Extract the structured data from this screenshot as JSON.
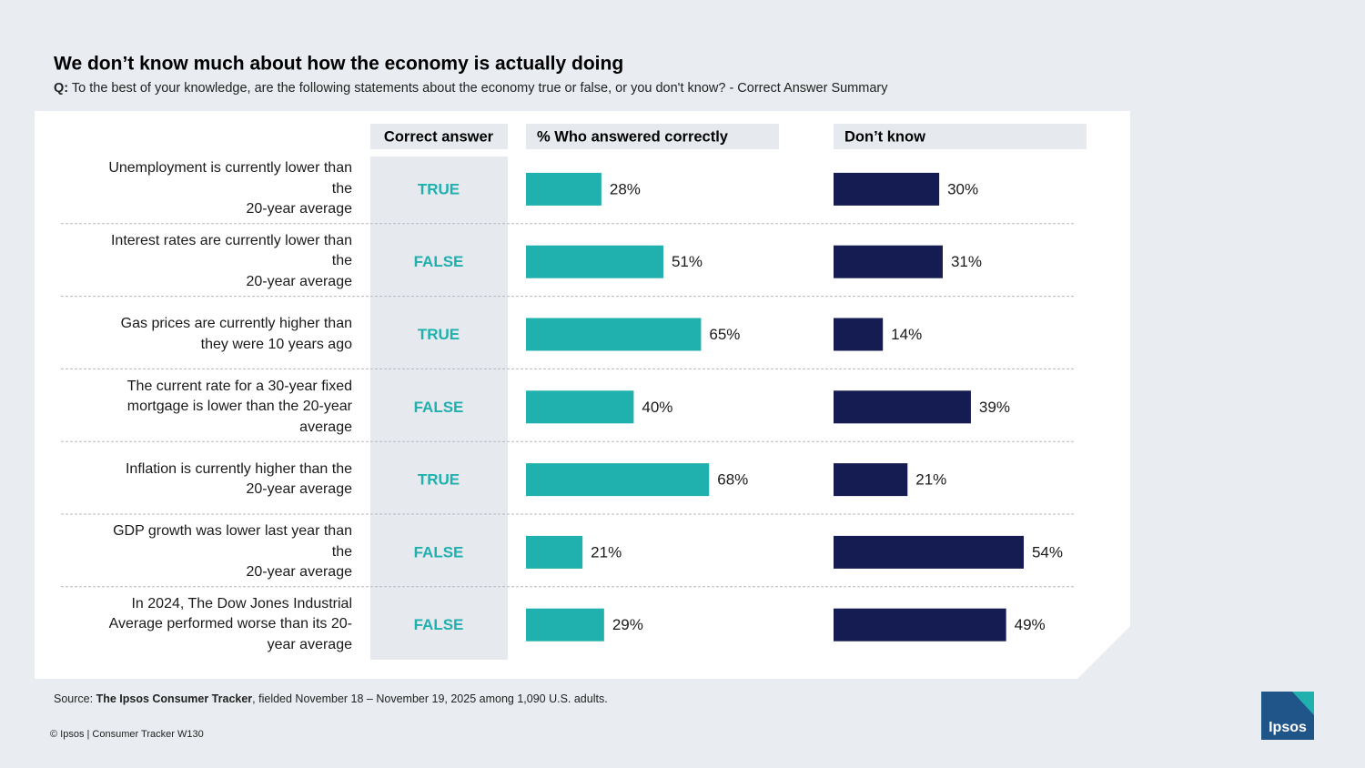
{
  "chart_data": {
    "type": "bar",
    "title": "We don’t know much about how the economy is actually doing",
    "question": {
      "prefix": "Q:",
      "text": "To the best of your knowledge, are the following statements about the economy true or false, or you don't know? - Correct Answer Summary"
    },
    "answer_header": "Correct answer",
    "categories": [
      "Unemployment is currently lower than\nthe\n20-year average",
      "Interest rates are currently lower than\nthe\n20-year average",
      "Gas prices are currently higher than\nthey were 10 years ago",
      "The current rate for a 30-year fixed\nmortgage is lower than the 20-year\naverage",
      "Inflation is currently higher than the\n20-year average",
      "GDP growth was lower last year than\nthe\n20-year average",
      "In 2024, The Dow Jones Industrial\nAverage performed worse than its 20-\nyear average"
    ],
    "correct_answers": [
      "TRUE",
      "FALSE",
      "TRUE",
      "FALSE",
      "TRUE",
      "FALSE",
      "FALSE"
    ],
    "series": [
      {
        "name": "% Who answered correctly",
        "color": "#20b0ae",
        "values": [
          28,
          51,
          65,
          40,
          68,
          21,
          29
        ],
        "value_labels": [
          "28%",
          "51%",
          "65%",
          "40%",
          "68%",
          "21%",
          "29%"
        ]
      },
      {
        "name": "Don’t know",
        "color": "#141c52",
        "values": [
          30,
          31,
          14,
          39,
          21,
          54,
          49
        ],
        "value_labels": [
          "30%",
          "31%",
          "14%",
          "39%",
          "21%",
          "54%",
          "49%"
        ]
      }
    ],
    "source": {
      "label": "Source:",
      "name": "The Ipsos Consumer Tracker",
      "text": ", fielded November 18 – November 19, 2025 among 1,090 U.S. adults."
    },
    "footer": "© Ipsos | Consumer Tracker W130",
    "logo": "Ipsos"
  }
}
